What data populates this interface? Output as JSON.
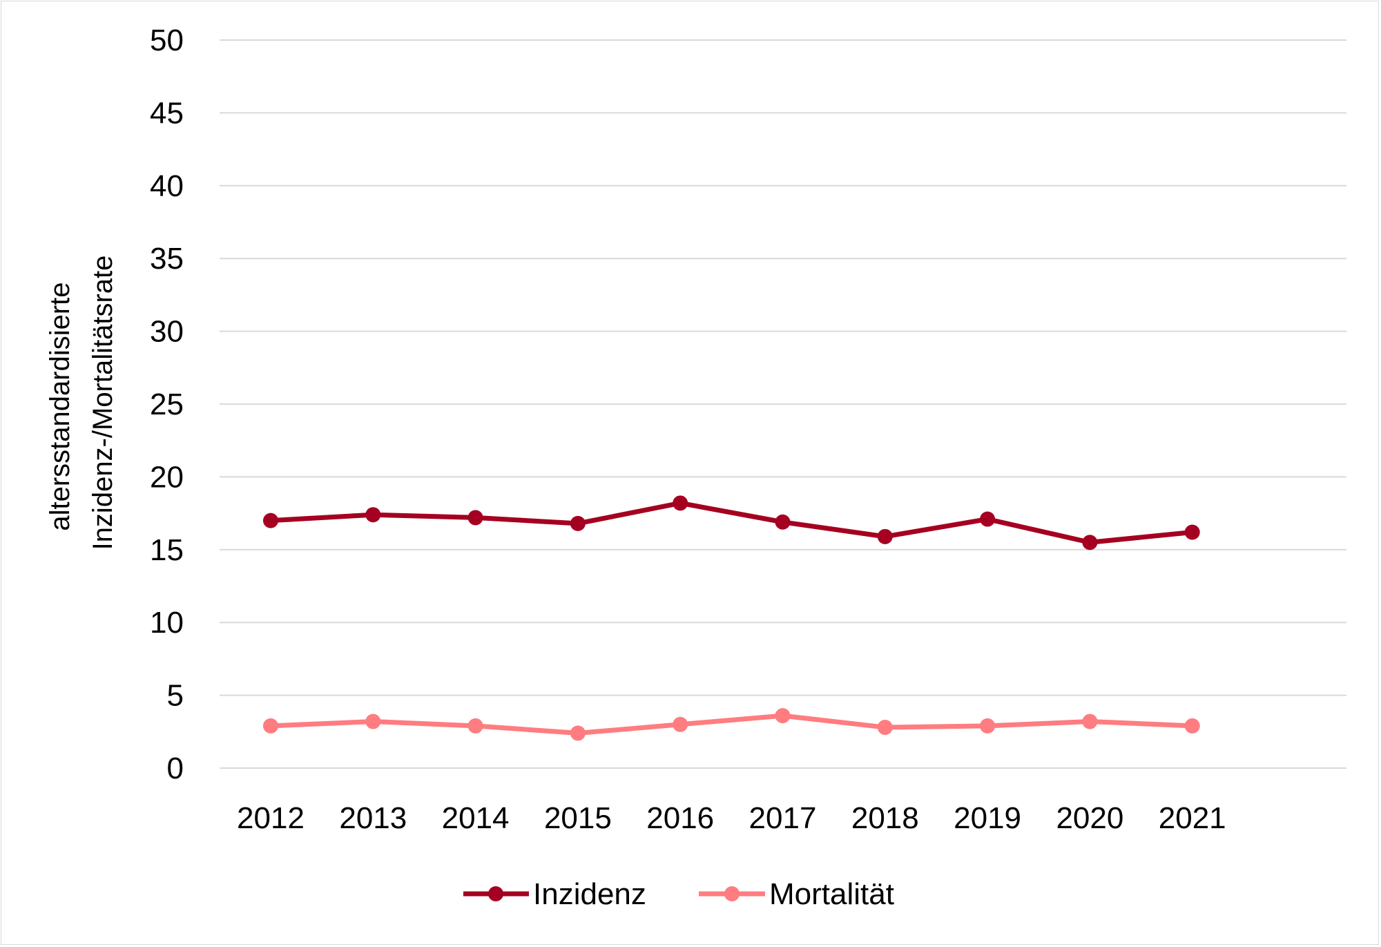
{
  "chart_data": {
    "type": "line",
    "title": "",
    "xlabel": "",
    "ylabel_lines": [
      "altersstandardisierte",
      "Inzidenz-/Mortalitätsrate"
    ],
    "categories": [
      "2012",
      "2013",
      "2014",
      "2015",
      "2016",
      "2017",
      "2018",
      "2019",
      "2020",
      "2021"
    ],
    "ylim": [
      0,
      50
    ],
    "yticks": [
      "0",
      "5",
      "10",
      "15",
      "20",
      "25",
      "30",
      "35",
      "40",
      "45",
      "50"
    ],
    "grid": true,
    "legend_position": "bottom",
    "series": [
      {
        "name": "Inzidenz",
        "color": "#A50021",
        "values": [
          17.0,
          17.4,
          17.2,
          16.8,
          18.2,
          16.9,
          15.9,
          17.1,
          15.5,
          16.2
        ]
      },
      {
        "name": "Mortalität",
        "color": "#FF7C80",
        "values": [
          2.9,
          3.2,
          2.9,
          2.4,
          3.0,
          3.6,
          2.8,
          2.9,
          3.2,
          2.9
        ]
      }
    ]
  }
}
